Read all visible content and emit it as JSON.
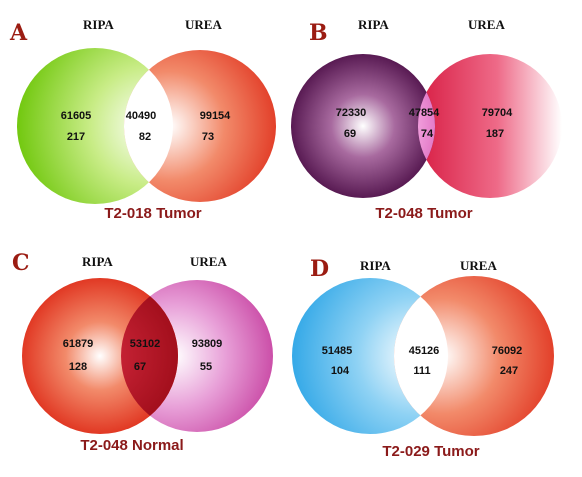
{
  "panels": [
    {
      "letter": "A",
      "set_left": "RIPA",
      "set_right": "UREA",
      "left_only": [
        "61605",
        "217"
      ],
      "overlap": [
        "40490",
        "82"
      ],
      "right_only": [
        "99154",
        "73"
      ],
      "caption": "T2-018 Tumor"
    },
    {
      "letter": "B",
      "set_left": "RIPA",
      "set_right": "UREA",
      "left_only": [
        "72330",
        "69"
      ],
      "overlap": [
        "47854",
        "74"
      ],
      "right_only": [
        "79704",
        "187"
      ],
      "caption": "T2-048 Tumor"
    },
    {
      "letter": "C",
      "set_left": "RIPA",
      "set_right": "UREA",
      "left_only": [
        "61879",
        "128"
      ],
      "overlap": [
        "53102",
        "67"
      ],
      "right_only": [
        "93809",
        "55"
      ],
      "caption": "T2-048 Normal"
    },
    {
      "letter": "D",
      "set_left": "RIPA",
      "set_right": "UREA",
      "left_only": [
        "51485",
        "104"
      ],
      "overlap": [
        "45126",
        "111"
      ],
      "right_only": [
        "76092",
        "247"
      ],
      "caption": "T2-029 Tumor"
    }
  ],
  "colors": {
    "letter": "#9b1c12",
    "caption": "#8b1a1a",
    "a_left": "#7fd11a",
    "a_right": "#e8301c",
    "b_left": "#5a1652",
    "b_right": "#e6284f",
    "b_overlap": "#f08ad2",
    "c_left": "#e8301c",
    "c_right": "#cc3fa8",
    "c_overlap": "#b0101c",
    "d_left": "#2aa8e8",
    "d_right": "#e8301c"
  }
}
